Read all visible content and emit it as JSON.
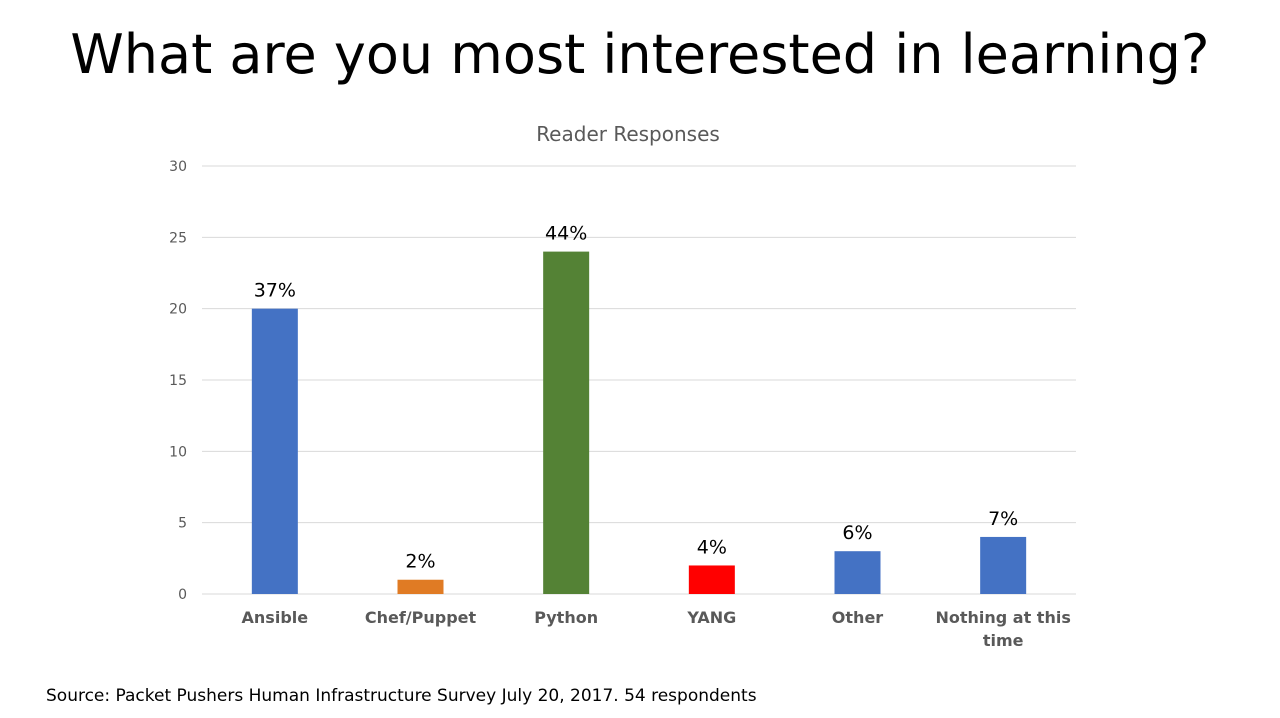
{
  "slide": {
    "title": "What are you most interested in learning?",
    "source": "Source: Packet Pushers Human Infrastructure Survey July 20, 2017. 54 respondents"
  },
  "chart_data": {
    "type": "bar",
    "title": "Reader Responses",
    "xlabel": "",
    "ylabel": "",
    "ylim": [
      0,
      30
    ],
    "yticks": [
      0,
      5,
      10,
      15,
      20,
      25,
      30
    ],
    "grid": true,
    "legend": "none",
    "categories": [
      "Ansible",
      "Chef/Puppet",
      "Python",
      "YANG",
      "Other",
      "Nothing at this time"
    ],
    "values": [
      20,
      1,
      24,
      2,
      3,
      4
    ],
    "data_labels": [
      "37%",
      "2%",
      "44%",
      "4%",
      "6%",
      "7%"
    ],
    "colors": [
      "#4472c4",
      "#e07b24",
      "#548235",
      "#ff0000",
      "#4472c4",
      "#4472c4"
    ]
  },
  "colors": {
    "grid": "#d9d9d9",
    "tick_text": "#595959",
    "category_text": "#595959",
    "chart_title": "#595959"
  }
}
